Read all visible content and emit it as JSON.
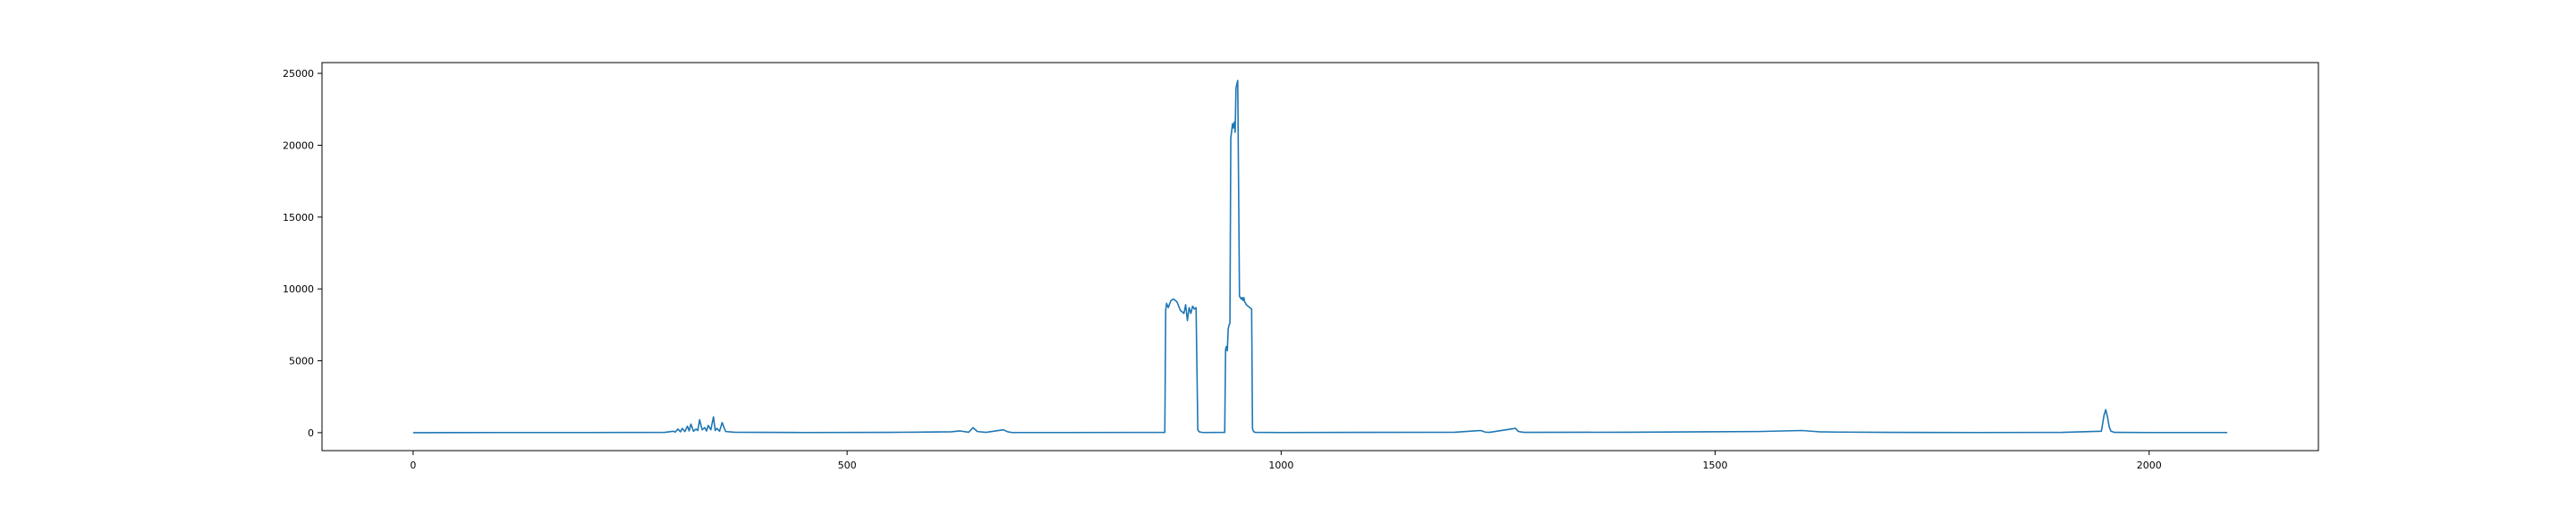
{
  "chart_data": {
    "type": "line",
    "title": "",
    "xlabel": "",
    "ylabel": "",
    "xlim": [
      -105,
      2195
    ],
    "ylim": [
      -1250,
      25750
    ],
    "x_ticks": [
      0,
      500,
      1000,
      1500,
      2000
    ],
    "x_tick_labels": [
      "0",
      "500",
      "1000",
      "1500",
      "2000"
    ],
    "y_ticks": [
      0,
      5000,
      10000,
      15000,
      20000,
      25000
    ],
    "y_tick_labels": [
      "0",
      "5000",
      "10000",
      "15000",
      "20000",
      "25000"
    ],
    "grid": false,
    "legend": "none",
    "color": "#1f77b4",
    "series": [
      {
        "x": [
          0,
          100,
          200,
          290,
          300,
          302,
          305,
          308,
          310,
          313,
          316,
          318,
          320,
          323,
          326,
          328,
          330,
          333,
          336,
          338,
          340,
          343,
          346,
          348,
          350,
          353,
          356,
          360,
          370,
          450,
          550,
          620,
          630,
          640,
          645,
          650,
          660,
          680,
          685,
          690,
          750,
          866,
          867,
          868,
          870,
          873,
          876,
          880,
          884,
          888,
          890,
          892,
          894,
          896,
          898,
          900,
          902,
          904,
          905,
          906,
          907,
          910,
          935,
          936,
          937,
          938,
          939,
          940,
          941,
          942,
          943,
          944,
          945,
          946,
          947,
          948,
          950,
          952,
          954,
          955,
          956,
          957,
          958,
          959,
          960,
          962,
          964,
          966,
          967,
          968,
          969,
          970,
          1000,
          1100,
          1200,
          1230,
          1235,
          1240,
          1270,
          1273,
          1276,
          1280,
          1400,
          1550,
          1600,
          1620,
          1640,
          1700,
          1800,
          1900,
          1945,
          1948,
          1950,
          1952,
          1954,
          1956,
          1960,
          2000,
          2090
        ],
        "y": [
          0,
          10,
          10,
          20,
          100,
          40,
          250,
          60,
          300,
          80,
          450,
          120,
          600,
          100,
          250,
          150,
          900,
          200,
          350,
          120,
          500,
          200,
          1100,
          150,
          300,
          100,
          700,
          80,
          30,
          10,
          20,
          60,
          120,
          30,
          350,
          80,
          20,
          200,
          60,
          10,
          10,
          20,
          8500,
          9000,
          8700,
          9200,
          9300,
          9100,
          8500,
          8300,
          8900,
          7800,
          8700,
          8300,
          8800,
          8600,
          8700,
          200,
          100,
          50,
          40,
          10,
          20,
          5800,
          6000,
          5700,
          7200,
          7500,
          7600,
          20500,
          21000,
          21500,
          21200,
          21600,
          20900,
          24000,
          24500,
          9500,
          9300,
          9400,
          9200,
          9400,
          9100,
          9000,
          8900,
          8800,
          8700,
          8600,
          300,
          100,
          50,
          20,
          10,
          20,
          30,
          150,
          40,
          20,
          300,
          100,
          50,
          20,
          30,
          80,
          150,
          60,
          40,
          20,
          10,
          20,
          100,
          1200,
          1600,
          1100,
          400,
          100,
          20,
          10,
          10
        ]
      }
    ]
  }
}
